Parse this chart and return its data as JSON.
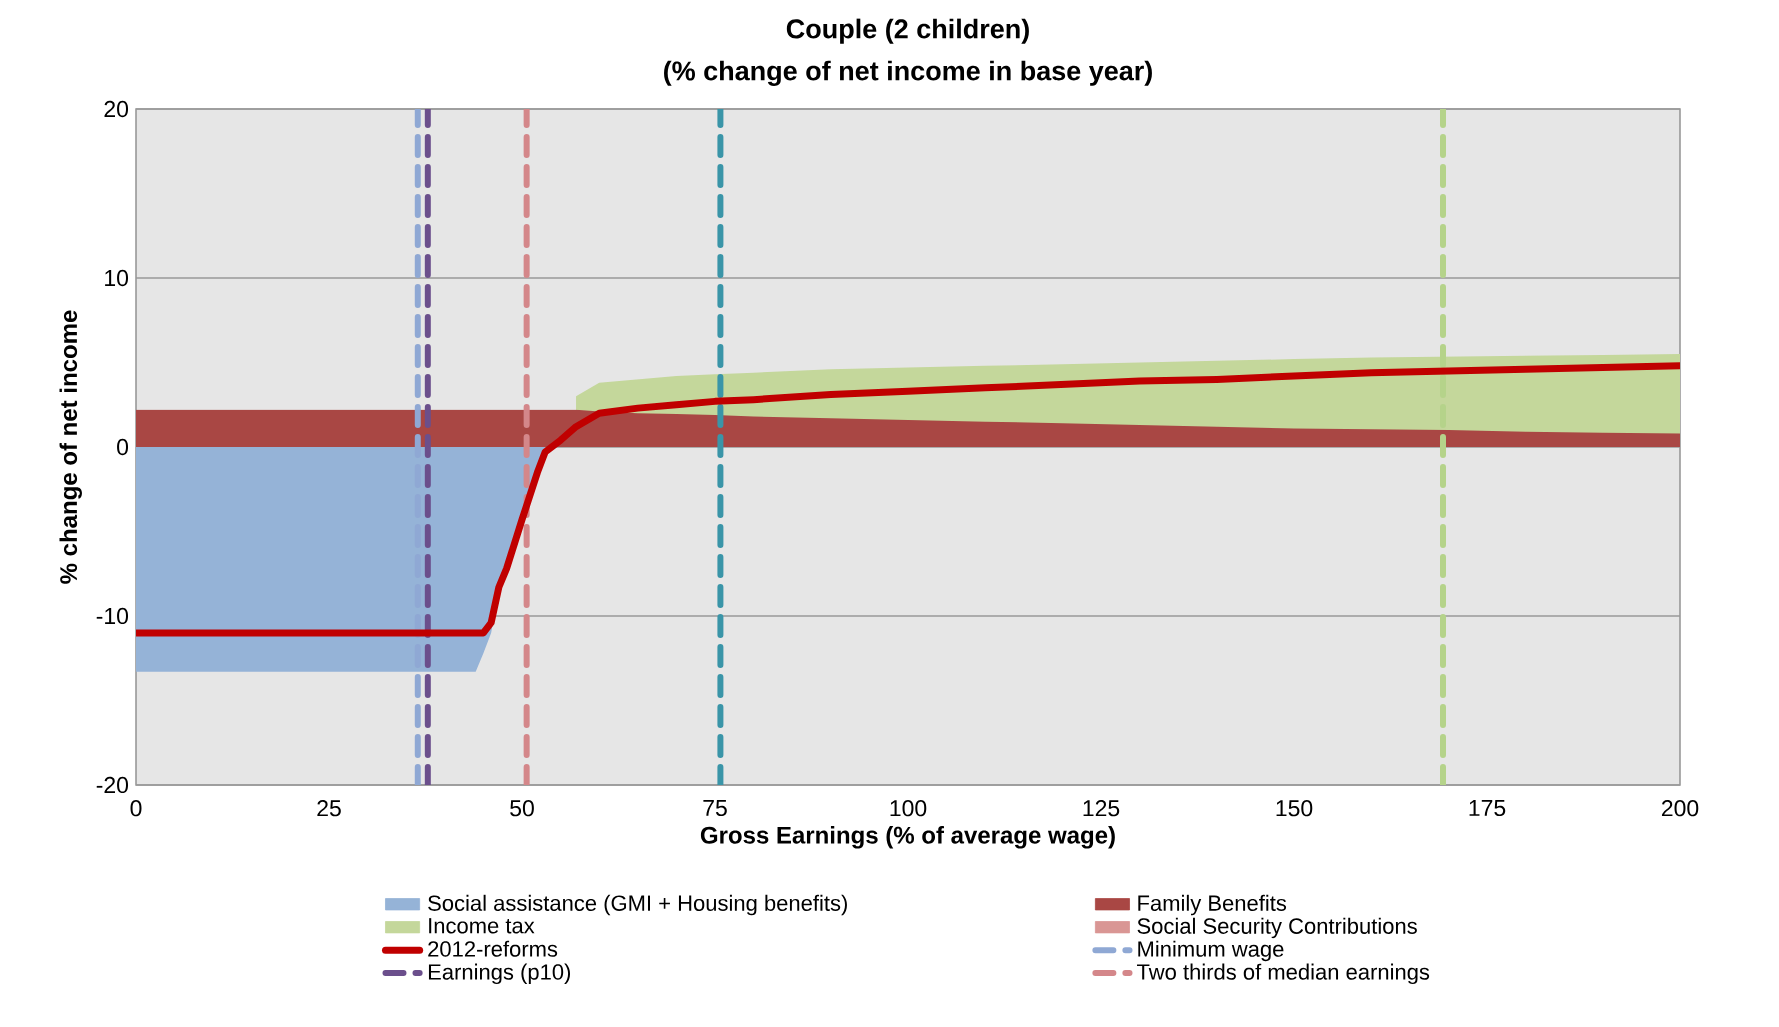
{
  "chart_data": {
    "type": "area",
    "title": "Couple (2 children)",
    "subtitle": "(% change of net income in base year)",
    "xlabel": "Gross Earnings (% of average wage)",
    "ylabel": "% change of net income",
    "x": [
      0,
      10,
      20,
      30,
      40,
      44,
      45,
      46,
      47,
      48,
      50,
      52,
      53,
      55,
      57,
      60,
      65,
      70,
      75,
      80,
      90,
      100,
      110,
      120,
      130,
      140,
      150,
      160,
      170,
      180,
      190,
      200
    ],
    "series": [
      {
        "name": "Social assistance (GMI + Housing benefits)",
        "color": "#95b3d7",
        "values": [
          -13.3,
          -13.3,
          -13.3,
          -13.3,
          -13.3,
          -13.3,
          -12.2,
          -11.0,
          -8.5,
          -7.5,
          -4.5,
          -1.0,
          0,
          0,
          0,
          0,
          0,
          0,
          0,
          0,
          0,
          0,
          0,
          0,
          0,
          0,
          0,
          0,
          0,
          0,
          0,
          0
        ]
      },
      {
        "name": "Family Benefits",
        "color": "#a94744",
        "values": [
          2.2,
          2.2,
          2.2,
          2.2,
          2.2,
          2.2,
          2.2,
          2.2,
          2.2,
          2.2,
          2.2,
          2.2,
          2.2,
          2.2,
          2.2,
          2.1,
          2.0,
          1.95,
          1.9,
          1.8,
          1.7,
          1.6,
          1.5,
          1.4,
          1.3,
          1.2,
          1.1,
          1.05,
          1.0,
          0.9,
          0.85,
          0.8
        ]
      },
      {
        "name": "Income tax",
        "color": "#c4d79b",
        "values": [
          null,
          null,
          null,
          null,
          null,
          null,
          null,
          null,
          null,
          null,
          null,
          null,
          null,
          null,
          3.0,
          3.8,
          4.0,
          4.2,
          4.3,
          4.4,
          4.6,
          4.7,
          4.8,
          4.9,
          5.0,
          5.1,
          5.2,
          5.3,
          5.35,
          5.4,
          5.45,
          5.5
        ]
      },
      {
        "name": "Social Security Contributions",
        "color": "#d99694",
        "values": [
          null,
          null,
          null,
          null,
          null,
          null,
          null,
          null,
          null,
          null,
          null,
          null,
          null,
          null,
          null,
          null,
          null,
          null,
          null,
          null,
          null,
          null,
          null,
          null,
          null,
          null,
          null,
          null,
          null,
          null,
          null,
          null
        ]
      },
      {
        "name": "2012-reforms",
        "type": "line",
        "color": "#c00000",
        "values": [
          -11,
          -11,
          -11,
          -11,
          -11,
          -11,
          -11,
          -10.4,
          -8.3,
          -7.2,
          -4.3,
          -1.5,
          -0.3,
          0.4,
          1.2,
          2.0,
          2.3,
          2.5,
          2.7,
          2.8,
          3.1,
          3.3,
          3.5,
          3.7,
          3.9,
          4.0,
          4.2,
          4.4,
          4.5,
          4.6,
          4.7,
          4.8
        ]
      }
    ],
    "ref_lines": [
      {
        "axis": "x",
        "value": 36.5,
        "label": "Minimum wage",
        "color": "#8fa8d4",
        "line_style": "dashed"
      },
      {
        "axis": "x",
        "value": 37.8,
        "label": "Earnings (p10)",
        "color": "#6b4f8c",
        "line_style": "dashed"
      },
      {
        "axis": "x",
        "value": 50.6,
        "label": "Two thirds of median earnings",
        "color": "#d4878a",
        "line_style": "dashed"
      },
      {
        "axis": "x",
        "value": 75.7,
        "color": "#3a95a8",
        "line_style": "dashed"
      },
      {
        "axis": "x",
        "value": 169.3,
        "color": "#b5d38a",
        "line_style": "dashed"
      }
    ],
    "xlim": [
      0,
      200
    ],
    "ylim": [
      -20,
      20
    ],
    "xticks": [
      0,
      25,
      50,
      75,
      100,
      125,
      150,
      175,
      200
    ],
    "yticks": [
      -20,
      -10,
      0,
      10,
      20
    ],
    "grid": "y",
    "legend": "bottom"
  }
}
